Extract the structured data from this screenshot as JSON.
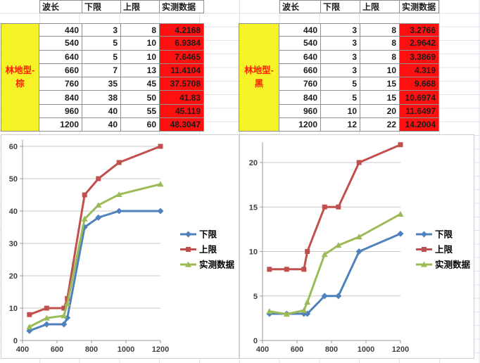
{
  "tables": [
    {
      "label": "林地型-棕",
      "headers": [
        "波长",
        "下限",
        "上限",
        "实测数据"
      ],
      "rows": [
        [
          "440",
          "3",
          "8",
          "4.2168"
        ],
        [
          "540",
          "5",
          "10",
          "6.9384"
        ],
        [
          "640",
          "5",
          "10",
          "7.6465"
        ],
        [
          "660",
          "7",
          "13",
          "11.4104"
        ],
        [
          "760",
          "35",
          "45",
          "37.5708"
        ],
        [
          "840",
          "38",
          "50",
          "41.83"
        ],
        [
          "960",
          "40",
          "55",
          "45.119"
        ],
        [
          "1200",
          "40",
          "60",
          "48.3047"
        ]
      ]
    },
    {
      "label": "林地型-黑",
      "headers": [
        "波长",
        "下限",
        "上限",
        "实测数据"
      ],
      "rows": [
        [
          "440",
          "3",
          "8",
          "3.2766"
        ],
        [
          "540",
          "3",
          "8",
          "2.9642"
        ],
        [
          "640",
          "3",
          "8",
          "3.3869"
        ],
        [
          "660",
          "3",
          "10",
          "4.319"
        ],
        [
          "760",
          "5",
          "15",
          "9.668"
        ],
        [
          "840",
          "5",
          "15",
          "10.6974"
        ],
        [
          "960",
          "10",
          "20",
          "11.6497"
        ],
        [
          "1200",
          "12",
          "22",
          "14.2004"
        ]
      ]
    }
  ],
  "chart_data": [
    {
      "type": "line",
      "title": "",
      "x": [
        440,
        540,
        640,
        660,
        760,
        840,
        960,
        1200
      ],
      "series": [
        {
          "name": "下限",
          "key": "lower-limit",
          "values": [
            3,
            5,
            5,
            7,
            35,
            38,
            40,
            40
          ],
          "color": "#4F81BD",
          "marker": "diamond"
        },
        {
          "name": "上限",
          "key": "upper-limit",
          "values": [
            8,
            10,
            10,
            13,
            45,
            50,
            55,
            60
          ],
          "color": "#C0504D",
          "marker": "square"
        },
        {
          "name": "实测数据",
          "key": "measured-data",
          "values": [
            4.2168,
            6.9384,
            7.6465,
            11.4104,
            37.5708,
            41.83,
            45.119,
            48.3047
          ],
          "color": "#9BBB59",
          "marker": "triangle"
        }
      ],
      "xlim": [
        400,
        1200
      ],
      "ylim": [
        0,
        62
      ],
      "xticks": [
        400,
        600,
        800,
        1000,
        1200
      ],
      "yticks": [
        0,
        10,
        20,
        30,
        40,
        50,
        60
      ],
      "grid": true,
      "legend_position": "right"
    },
    {
      "type": "line",
      "title": "",
      "x": [
        440,
        540,
        640,
        660,
        760,
        840,
        960,
        1200
      ],
      "series": [
        {
          "name": "下限",
          "key": "lower-limit",
          "values": [
            3,
            3,
            3,
            3,
            5,
            5,
            10,
            12
          ],
          "color": "#4F81BD",
          "marker": "diamond"
        },
        {
          "name": "上限",
          "key": "upper-limit",
          "values": [
            8,
            8,
            8,
            10,
            15,
            15,
            20,
            22
          ],
          "color": "#C0504D",
          "marker": "square"
        },
        {
          "name": "实测数据",
          "key": "measured-data",
          "values": [
            3.2766,
            2.9642,
            3.3869,
            4.319,
            9.668,
            10.6974,
            11.6497,
            14.2004
          ],
          "color": "#9BBB59",
          "marker": "triangle"
        }
      ],
      "xlim": [
        400,
        1200
      ],
      "ylim": [
        0,
        22.6
      ],
      "xticks": [
        400,
        600,
        800,
        1000,
        1200
      ],
      "yticks": [
        0,
        5,
        10,
        15,
        20
      ],
      "grid": true,
      "legend_position": "right"
    }
  ],
  "colors": {
    "measured_fill": "#FE1010",
    "label_fill": "#F5F327",
    "label_text": "#FE2000",
    "chart_gridline": "#C9C9C9",
    "chart_axis": "#9B9B9B",
    "axis_label_text": "#3F3F3F",
    "series_lower": "#4F81BD",
    "series_upper": "#C0504D",
    "series_measured": "#9BBB59"
  }
}
